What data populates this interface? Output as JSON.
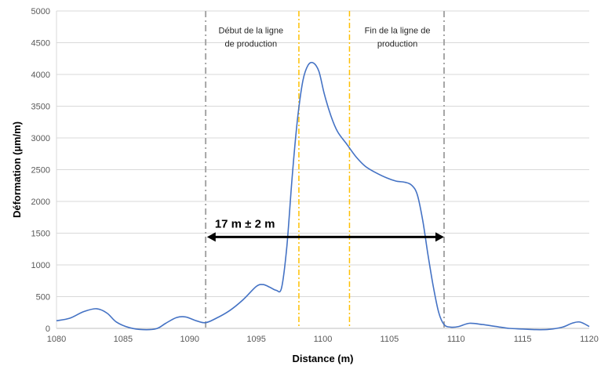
{
  "chart_data": {
    "type": "line",
    "title": "",
    "xlabel": "Distance (m)",
    "ylabel": "Déformation (µm/m)",
    "xlim": [
      1080,
      1120
    ],
    "ylim": [
      0,
      5000
    ],
    "x_ticks": [
      1080,
      1085,
      1090,
      1095,
      1100,
      1105,
      1110,
      1115,
      1120
    ],
    "y_ticks": [
      0,
      500,
      1000,
      1500,
      2000,
      2500,
      3000,
      3500,
      4000,
      4500,
      5000
    ],
    "grid": "horizontal",
    "legend": "none",
    "series": [
      {
        "color": "#4472C4",
        "x": [
          1080,
          1081,
          1082,
          1083,
          1083.8,
          1084.5,
          1085.5,
          1086.5,
          1087.5,
          1088.2,
          1089,
          1089.7,
          1090.5,
          1091.2,
          1092,
          1093,
          1094,
          1095,
          1095.5,
          1096,
          1096.5,
          1096.9,
          1097.3,
          1097.7,
          1098.1,
          1098.5,
          1098.9,
          1099.3,
          1099.7,
          1100.1,
          1100.6,
          1101.1,
          1101.8,
          1102.5,
          1103.2,
          1104,
          1104.8,
          1105.5,
          1106.2,
          1106.7,
          1107.1,
          1107.5,
          1107.9,
          1108.3,
          1108.7,
          1109.1,
          1109.6,
          1110.2,
          1111,
          1112,
          1113,
          1114,
          1115,
          1116,
          1117,
          1118,
          1118.7,
          1119.3,
          1120
        ],
        "y": [
          120,
          160,
          260,
          310,
          240,
          100,
          10,
          -20,
          -5,
          80,
          170,
          180,
          120,
          90,
          160,
          280,
          450,
          660,
          690,
          650,
          600,
          640,
          1300,
          2400,
          3300,
          3900,
          4150,
          4180,
          4050,
          3700,
          3350,
          3100,
          2900,
          2700,
          2550,
          2450,
          2370,
          2320,
          2300,
          2250,
          2100,
          1700,
          1150,
          650,
          250,
          60,
          20,
          30,
          80,
          60,
          30,
          0,
          -10,
          -20,
          -15,
          20,
          80,
          100,
          30
        ]
      }
    ],
    "vertical_lines": [
      {
        "x": 1091.2,
        "color": "#A6A6A6",
        "style": "dashdot"
      },
      {
        "x": 1098.2,
        "color": "#FFC000",
        "style": "dashdot"
      },
      {
        "x": 1102,
        "color": "#FFC000",
        "style": "dashdot"
      },
      {
        "x": 1109.1,
        "color": "#A6A6A6",
        "style": "dashdot"
      }
    ],
    "annotations": [
      {
        "text_lines": [
          "Début de la ligne",
          "de production"
        ],
        "x_center": 1094.6,
        "y_top": 4650
      },
      {
        "text_lines": [
          "Fin de la ligne de",
          "production"
        ],
        "x_center": 1105.6,
        "y_top": 4650
      }
    ],
    "measurement": {
      "label": "17 m ± 2 m",
      "x_start": 1091.3,
      "x_end": 1109.1,
      "y": 1440
    }
  }
}
